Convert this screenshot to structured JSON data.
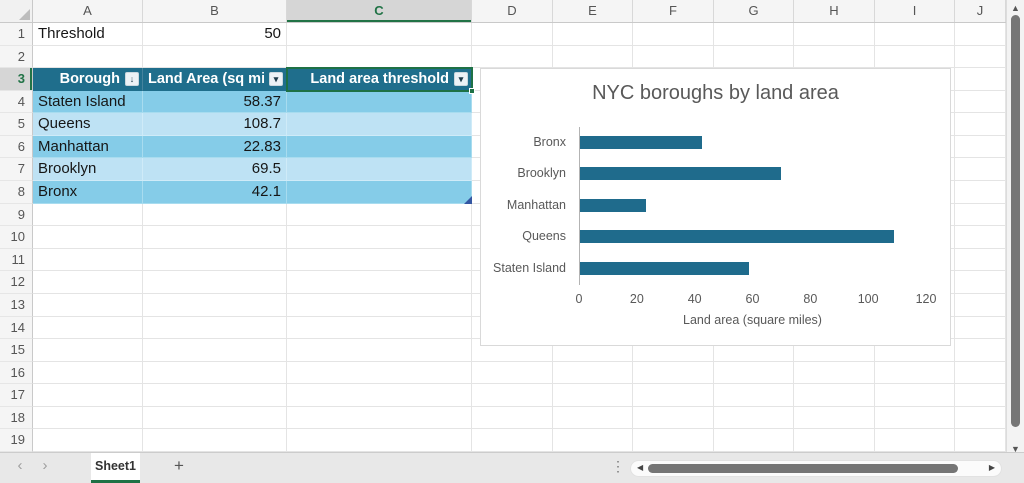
{
  "spreadsheet": {
    "columns": [
      "A",
      "B",
      "C",
      "D",
      "E",
      "F",
      "G",
      "H",
      "I",
      "J"
    ],
    "rows": [
      "1",
      "2",
      "3",
      "4",
      "5",
      "6",
      "7",
      "8",
      "9",
      "10",
      "11",
      "12",
      "13",
      "14",
      "15",
      "16",
      "17",
      "18",
      "19"
    ],
    "selected_column": "C",
    "selected_row": "3",
    "cells": {
      "A1": "Threshold",
      "B1": "50"
    },
    "table": {
      "headers": [
        {
          "label": "Borough",
          "icon": "sort-filter-icon",
          "glyph": "↓"
        },
        {
          "label": "Land Area (sq mi",
          "icon": "filter-dropdown-icon",
          "glyph": "▾"
        },
        {
          "label": "Land area threshold",
          "icon": "filter-dropdown-icon",
          "glyph": "▾"
        }
      ],
      "rows": [
        {
          "borough": "Staten Island",
          "land_area": "58.37"
        },
        {
          "borough": "Queens",
          "land_area": "108.7"
        },
        {
          "borough": "Manhattan",
          "land_area": "22.83"
        },
        {
          "borough": "Brooklyn",
          "land_area": "69.5"
        },
        {
          "borough": "Bronx",
          "land_area": "42.1"
        }
      ]
    }
  },
  "chart_data": {
    "type": "bar",
    "orientation": "horizontal",
    "title": "NYC boroughs by land area",
    "categories": [
      "Bronx",
      "Brooklyn",
      "Manhattan",
      "Queens",
      "Staten Island"
    ],
    "values": [
      42.1,
      69.5,
      22.83,
      108.7,
      58.37
    ],
    "xlabel": "Land area (square miles)",
    "ylabel": "",
    "xticks": [
      0,
      20,
      40,
      60,
      80,
      100,
      120
    ],
    "xlim": [
      0,
      120
    ],
    "grid": false,
    "legend": "none",
    "bar_color": "#1F6B8C"
  },
  "sheet_bar": {
    "nav_prev": "‹",
    "nav_next": "›",
    "active_tab": "Sheet1",
    "add_sheet_label": "+",
    "dots_handle": "⋮",
    "hscroll_left": "◀",
    "hscroll_right": "▶",
    "vscroll_up": "▲",
    "vscroll_down": "▼"
  },
  "colors": {
    "accent_green": "#217346",
    "table_header": "#1F6E8C",
    "band_dark": "#85CCE8",
    "band_light": "#BEE2F4",
    "bar": "#1F6B8C",
    "chart_text": "#595959"
  }
}
